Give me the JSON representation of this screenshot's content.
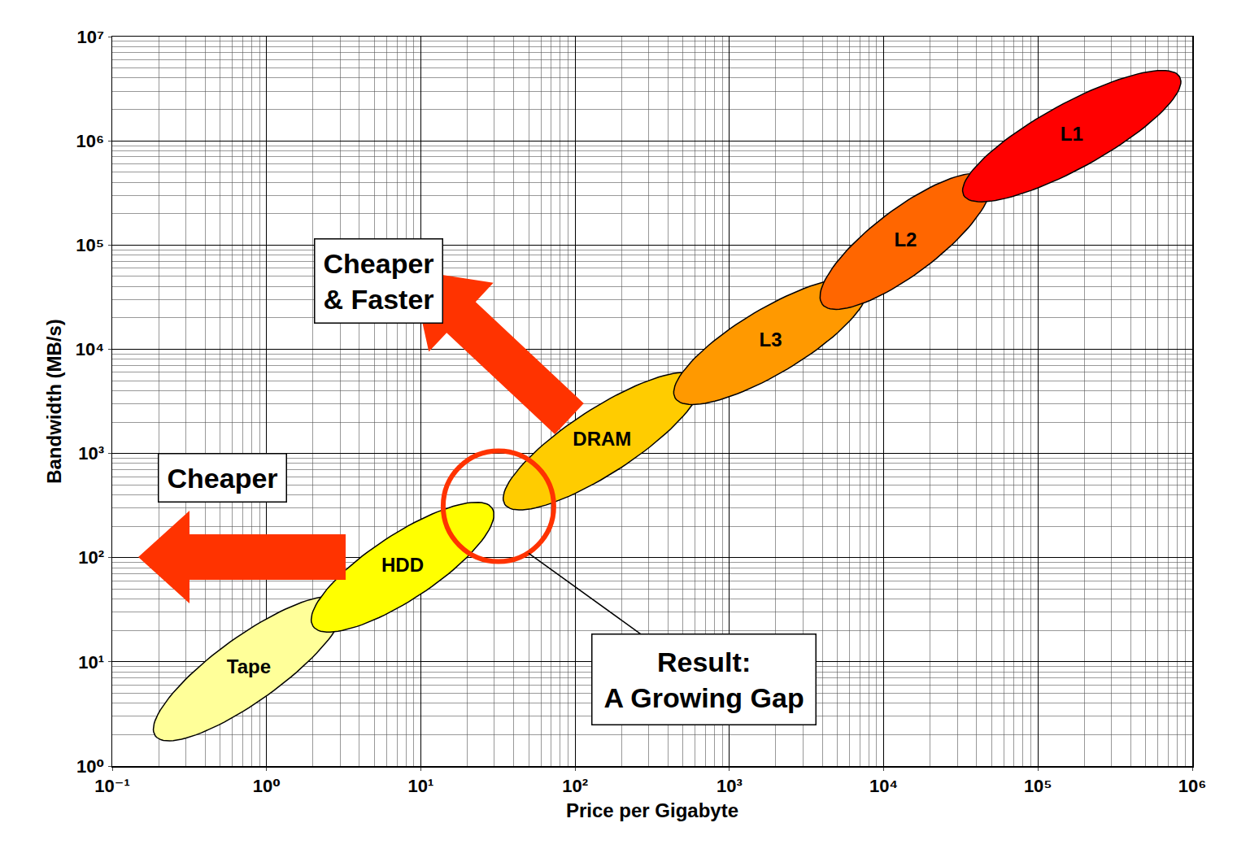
{
  "chart_data": {
    "type": "ellipse",
    "x_label": "Price per Gigabyte",
    "y_label": "Bandwidth (MB/s)",
    "log": true,
    "grid": true,
    "xlim": [
      0.1,
      1000000
    ],
    "ylim": [
      1,
      10000000
    ],
    "xticks": [
      {
        "value": 0.1,
        "label": "10⁻¹"
      },
      {
        "value": 1,
        "label": "10⁰"
      },
      {
        "value": 10,
        "label": "10¹"
      },
      {
        "value": 100,
        "label": "10²"
      },
      {
        "value": 1000,
        "label": "10³"
      },
      {
        "value": 10000,
        "label": "10⁴"
      },
      {
        "value": 100000,
        "label": "10⁵"
      },
      {
        "value": 1000000,
        "label": "10⁶"
      }
    ],
    "yticks": [
      {
        "value": 1,
        "label": "10⁰"
      },
      {
        "value": 10,
        "label": "10¹"
      },
      {
        "value": 100,
        "label": "10²"
      },
      {
        "value": 1000,
        "label": "10³"
      },
      {
        "value": 10000,
        "label": "10⁴"
      },
      {
        "value": 100000,
        "label": "10⁵"
      },
      {
        "value": 1000000,
        "label": "10⁶"
      },
      {
        "value": 10000000,
        "label": "10⁷"
      }
    ],
    "series": [
      {
        "name": "Tape",
        "color": "#ffff99",
        "x": [
          0.19,
          3.1
        ],
        "values": [
          1.95,
          38
        ]
      },
      {
        "name": "HDD",
        "color": "#ffff00",
        "x": [
          2.0,
          29
        ],
        "values": [
          22,
          298
        ]
      },
      {
        "name": "DRAM",
        "color": "#ffcc00",
        "x": [
          35,
          640
        ],
        "values": [
          325,
          5300
        ]
      },
      {
        "name": "L3",
        "color": "#ff9900",
        "x": [
          445,
          7700
        ],
        "values": [
          3400,
          42000
        ]
      },
      {
        "name": "L2",
        "color": "#ff6600",
        "x": [
          4000,
          48000
        ],
        "values": [
          27000,
          435000
        ]
      },
      {
        "name": "L1",
        "color": "#ff0000",
        "x": [
          33000,
          830000
        ],
        "values": [
          300000,
          4100000
        ]
      }
    ],
    "annotations": [
      {
        "lines": [
          "Cheaper",
          "& Faster"
        ],
        "x": 5.3,
        "y": 45000
      },
      {
        "lines": [
          "Cheaper"
        ],
        "x": 0.52,
        "y": 580
      },
      {
        "lines": [
          "Result:",
          "A Growing Gap"
        ],
        "x": 680,
        "y": 6.8,
        "arrow_x": 50,
        "arrow_y": 110
      }
    ]
  }
}
